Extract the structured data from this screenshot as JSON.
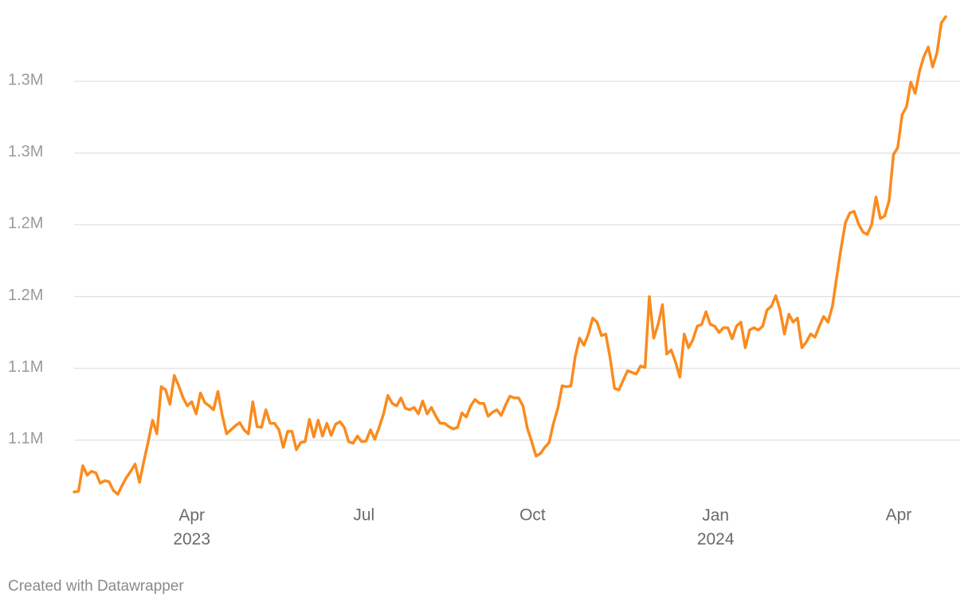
{
  "chart_data": {
    "type": "line",
    "footer": "Created with Datawrapper",
    "xlim": [
      0,
      200
    ],
    "xticks": [
      {
        "value": 27,
        "label": "Apr\n2023"
      },
      {
        "value": 66.5,
        "label": "Jul"
      },
      {
        "value": 105.2,
        "label": "Oct"
      },
      {
        "value": 147.2,
        "label": "Jan\n2024"
      },
      {
        "value": 189.2,
        "label": "Apr"
      }
    ],
    "ylim": [
      1005000,
      1350000
    ],
    "yticks": [
      {
        "value": 1050000,
        "label": "1.1M"
      },
      {
        "value": 1100000,
        "label": "1.1M"
      },
      {
        "value": 1150000,
        "label": "1.2M"
      },
      {
        "value": 1200000,
        "label": "1.2M"
      },
      {
        "value": 1250000,
        "label": "1.3M"
      },
      {
        "value": 1300000,
        "label": "1.3M"
      }
    ],
    "grid": true,
    "color": "#fa8b1e",
    "values": [
      1013900,
      1014400,
      1032200,
      1025600,
      1028300,
      1027200,
      1020000,
      1021700,
      1021100,
      1015000,
      1012200,
      1018300,
      1023900,
      1028300,
      1033300,
      1020600,
      1035000,
      1048900,
      1063900,
      1054400,
      1087200,
      1085000,
      1075000,
      1095000,
      1087800,
      1079400,
      1073900,
      1076700,
      1068300,
      1082800,
      1076100,
      1073900,
      1071100,
      1083900,
      1067200,
      1054400,
      1057200,
      1060000,
      1062200,
      1057200,
      1054400,
      1076700,
      1059400,
      1058900,
      1071100,
      1061700,
      1061700,
      1057200,
      1045000,
      1056100,
      1056100,
      1043300,
      1048300,
      1048900,
      1064400,
      1052200,
      1063900,
      1052800,
      1061700,
      1053300,
      1061100,
      1062800,
      1058900,
      1048900,
      1047800,
      1052800,
      1048900,
      1049400,
      1057200,
      1050600,
      1058900,
      1068300,
      1081100,
      1075600,
      1073900,
      1079400,
      1072200,
      1071100,
      1072800,
      1068300,
      1077200,
      1068300,
      1072800,
      1066700,
      1061700,
      1061700,
      1059400,
      1057800,
      1058900,
      1068900,
      1066100,
      1073900,
      1078300,
      1075600,
      1075600,
      1066700,
      1069400,
      1071100,
      1067200,
      1074400,
      1080600,
      1079400,
      1079400,
      1073900,
      1058300,
      1048900,
      1038900,
      1040600,
      1045000,
      1048300,
      1061700,
      1072200,
      1087800,
      1087200,
      1087800,
      1108300,
      1121100,
      1116100,
      1123900,
      1135000,
      1132200,
      1122800,
      1123900,
      1107200,
      1086100,
      1085000,
      1091700,
      1098300,
      1097200,
      1096100,
      1101700,
      1100600,
      1150000,
      1121100,
      1130600,
      1144400,
      1110000,
      1112800,
      1104400,
      1093900,
      1123900,
      1114400,
      1120000,
      1129400,
      1130600,
      1139400,
      1130600,
      1129400,
      1125000,
      1128300,
      1128300,
      1120600,
      1129400,
      1132200,
      1114400,
      1126700,
      1128300,
      1126700,
      1129400,
      1140600,
      1143300,
      1150600,
      1140600,
      1123900,
      1137800,
      1132200,
      1135000,
      1114400,
      1118300,
      1123900,
      1121700,
      1129400,
      1136100,
      1132200,
      1143300,
      1163900,
      1183900,
      1201700,
      1208300,
      1209400,
      1200600,
      1195000,
      1193300,
      1200000,
      1219400,
      1204400,
      1206100,
      1216700,
      1248900,
      1253900,
      1276700,
      1282200,
      1299400,
      1291700,
      1307200,
      1317200,
      1323900,
      1310000,
      1320000,
      1340600,
      1345000
    ]
  }
}
